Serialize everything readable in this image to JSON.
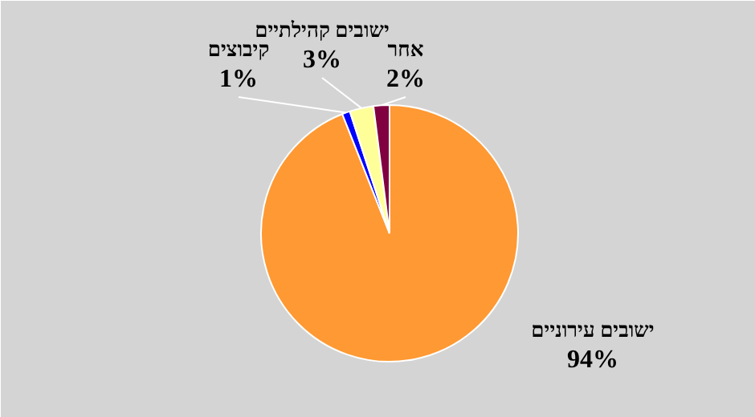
{
  "chart_data": {
    "type": "pie",
    "categories": [
      "ישובים עירוניים",
      "קיבוצים",
      "ישובים קהילתיים",
      "אחר"
    ],
    "values": [
      94,
      1,
      3,
      2
    ],
    "value_labels": [
      "94%",
      "1%",
      "3%",
      "2%"
    ],
    "colors": [
      "#ff9933",
      "#0000ff",
      "#ffff99",
      "#800040"
    ]
  }
}
